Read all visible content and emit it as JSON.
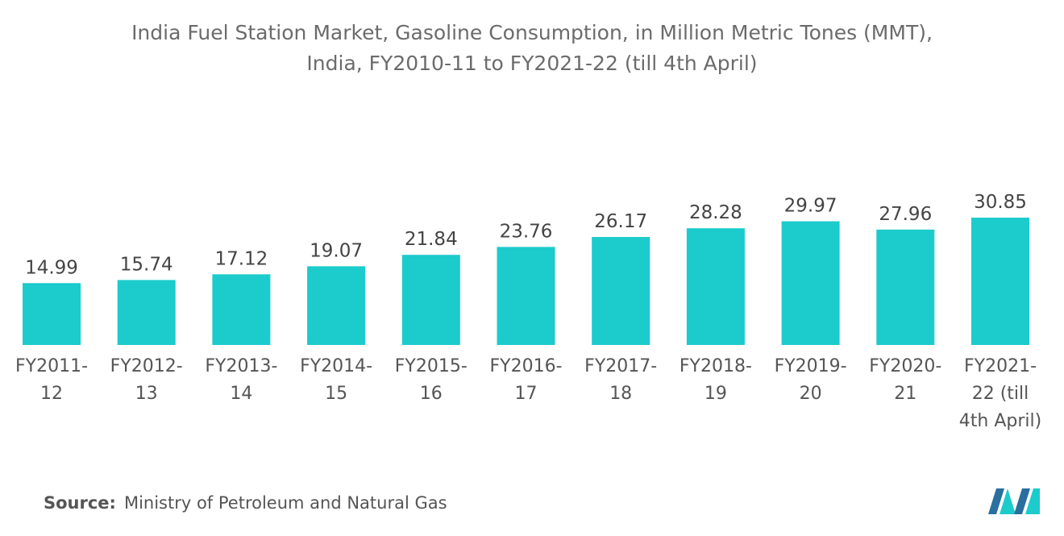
{
  "chart_data": {
    "type": "bar",
    "title": "India Fuel Station Market, Gasoline Consumption, in Million Metric Tones (MMT), India, FY2010-11 to FY2021-22 (till 4th April)",
    "categories": [
      "FY2011-12",
      "FY2012-13",
      "FY2013-14",
      "FY2014-15",
      "FY2015-16",
      "FY2016-17",
      "FY2017-18",
      "FY2018-19",
      "FY2019-20",
      "FY2020-21",
      "FY2021-22 (till 4th April)"
    ],
    "values": [
      14.99,
      15.74,
      17.12,
      19.07,
      21.84,
      23.76,
      26.17,
      28.28,
      29.97,
      27.96,
      30.85
    ],
    "color": "#1ccbcc",
    "source_label": "Source:",
    "source": "Ministry of Petroleum and Natural Gas"
  }
}
